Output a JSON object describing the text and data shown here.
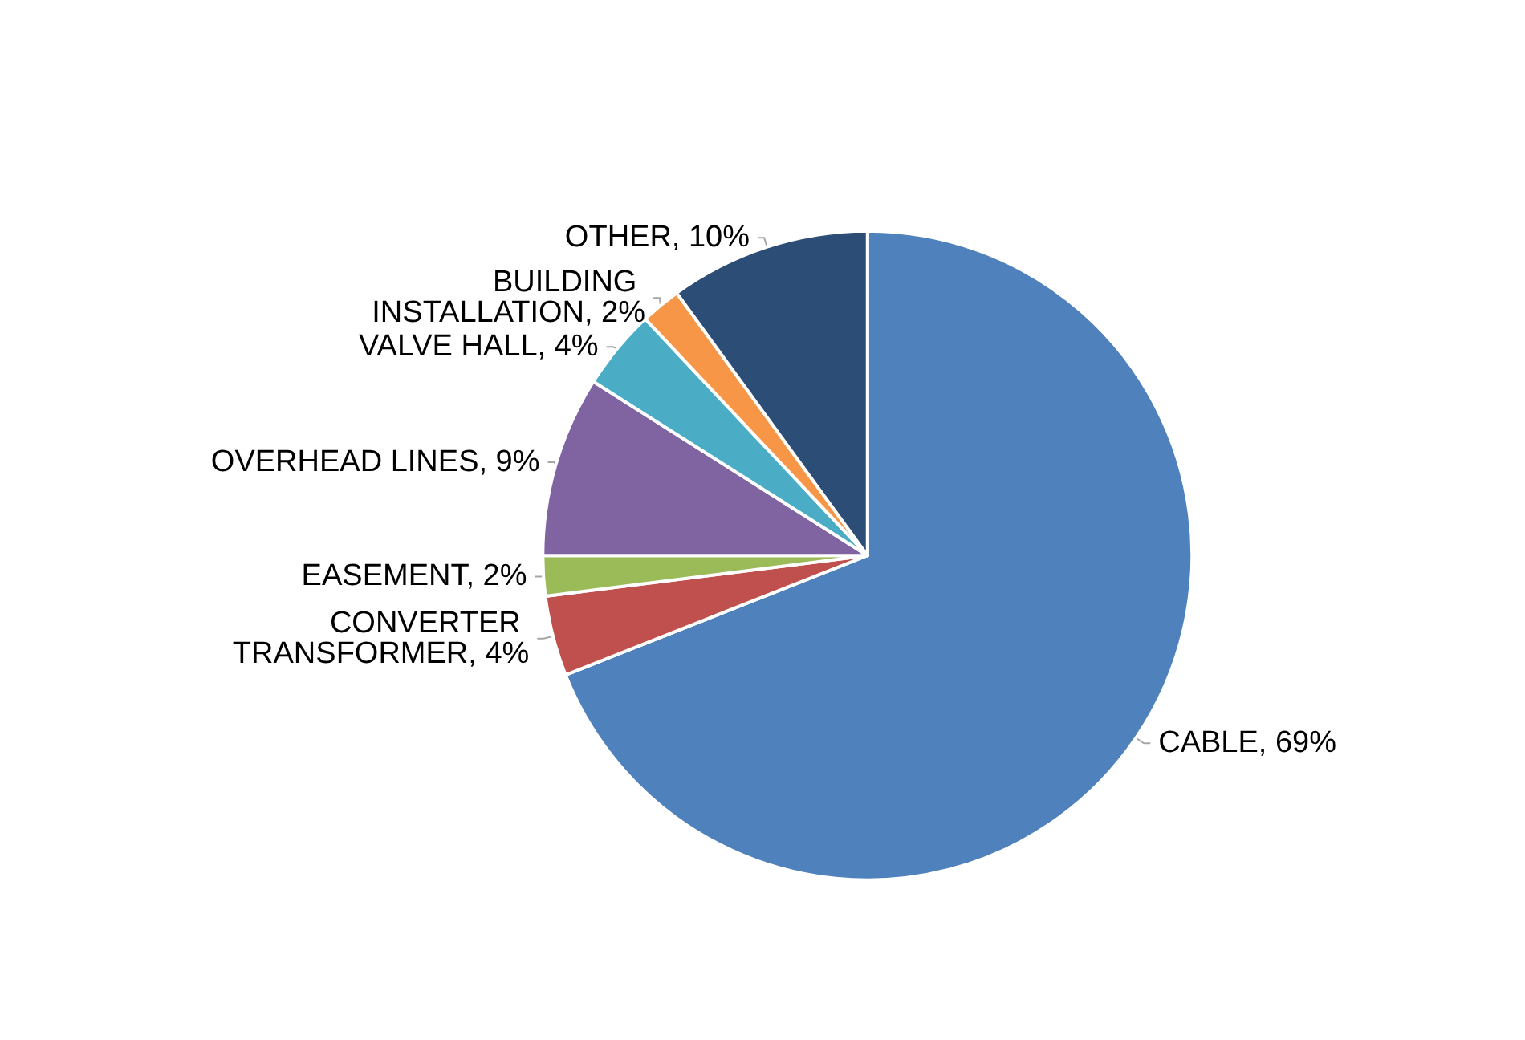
{
  "chart_data": {
    "type": "pie",
    "categories": [
      "CABLE",
      "CONVERTER TRANSFORMER",
      "EASEMENT",
      "OVERHEAD LINES",
      "VALVE HALL",
      "BUILDING INSTALLATION",
      "OTHER"
    ],
    "values": [
      69,
      4,
      2,
      9,
      4,
      2,
      10
    ],
    "value_labels": [
      "69%",
      "4%",
      "2%",
      "9%",
      "4%",
      "2%",
      "10%"
    ],
    "colors": [
      "#4f81bd",
      "#c0504d",
      "#9bbb59",
      "#8064a2",
      "#4bacc6",
      "#f79646",
      "#2c4d75"
    ],
    "legend": false
  }
}
